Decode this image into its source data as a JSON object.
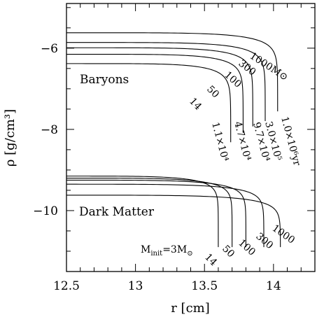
{
  "chart_data": {
    "type": "line",
    "xlabel": "r  [cm]",
    "ylabel": "ρ  [g/cm³]",
    "xlim": [
      12.5,
      14.3
    ],
    "ylim": [
      -11.5,
      -4.9
    ],
    "x_ticks": [
      "12.5",
      "13",
      "13.5",
      "14"
    ],
    "y_ticks": [
      "−6",
      "−8",
      "−10"
    ],
    "x_tick_values": [
      12.5,
      13,
      13.5,
      14
    ],
    "y_tick_values": [
      -6,
      -8,
      -10
    ],
    "grid": false,
    "annotations": {
      "baryons": "Baryons",
      "dark_matter": "Dark Matter",
      "minit_prefix": "M",
      "minit_sub": "init",
      "minit_value": "=3M",
      "sun_symbol": "⊙"
    },
    "baryon_series": [
      {
        "label": "1000M⊙",
        "time_label": "1.0×10⁶yr",
        "rho0": -5.62,
        "r_edge": 14.03
      },
      {
        "label": "300",
        "time_label": "3.0×10⁵",
        "rho0": -5.86,
        "r_edge": 13.94
      },
      {
        "label": "100",
        "time_label": "9.7×10⁴",
        "rho0": -5.99,
        "r_edge": 13.85
      },
      {
        "label": "50",
        "time_label": "4.7×10⁴",
        "rho0": -6.15,
        "r_edge": 13.78
      },
      {
        "label": "14",
        "time_label": "1.1×10⁴",
        "rho0": -6.38,
        "r_edge": 13.69
      }
    ],
    "dm_series": [
      {
        "label": "1000",
        "rho0": -9.62,
        "r_edge": 14.05
      },
      {
        "label": "300",
        "rho0": -9.35,
        "r_edge": 13.93
      },
      {
        "label": "100",
        "rho0": -9.25,
        "r_edge": 13.8
      },
      {
        "label": "50",
        "rho0": -9.2,
        "r_edge": 13.7
      },
      {
        "label": "14",
        "rho0": -9.15,
        "r_edge": 13.6
      }
    ]
  }
}
